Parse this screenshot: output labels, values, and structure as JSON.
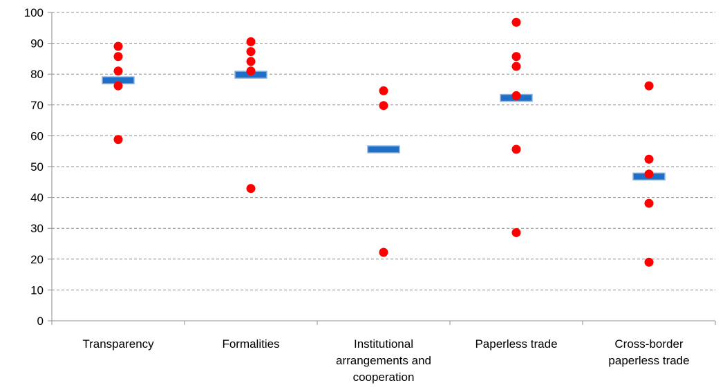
{
  "chart_data": {
    "type": "scatter",
    "title": "",
    "xlabel": "",
    "ylabel": "",
    "ylim": [
      0,
      100
    ],
    "y_ticks": [
      0,
      10,
      20,
      30,
      40,
      50,
      60,
      70,
      80,
      90,
      100
    ],
    "grid": "horizontal dashed",
    "legend": "none",
    "categories": [
      {
        "lines": [
          "Transparency"
        ]
      },
      {
        "lines": [
          "Formalities"
        ]
      },
      {
        "lines": [
          "Institutional",
          "arrangements and",
          "cooperation"
        ]
      },
      {
        "lines": [
          "Paperless trade"
        ]
      },
      {
        "lines": [
          "Cross-border",
          "paperless trade"
        ]
      }
    ],
    "series": [
      {
        "marker": "circle",
        "color": "#ff0000",
        "values": [
          [
            89,
            85.7,
            81,
            76.2,
            58.8
          ],
          [
            90.5,
            87.3,
            84.1,
            81,
            42.9
          ],
          [
            74.6,
            69.8,
            22.2
          ],
          [
            96.8,
            85.7,
            82.5,
            73,
            55.6,
            28.6
          ],
          [
            76.2,
            52.4,
            47.6,
            38.1,
            19
          ]
        ]
      },
      {
        "marker": "bar",
        "color": "#1f6fc6",
        "values": [
          78,
          79.8,
          55.6,
          72.3,
          46.8
        ]
      }
    ]
  }
}
